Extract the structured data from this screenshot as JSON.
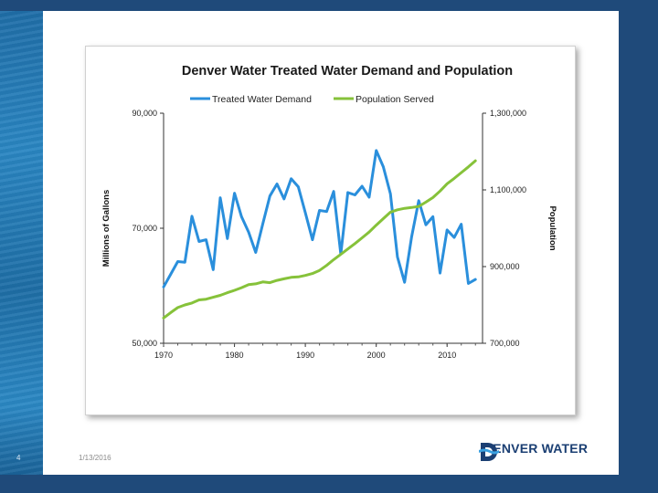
{
  "slide": {
    "page_number": "4",
    "date": "1/13/2016",
    "brand_name": "DENVER WATER"
  },
  "colors": {
    "demand": "#2a8fdc",
    "population": "#86c23a",
    "brand": "#1b3f73"
  },
  "chart_data": {
    "type": "line",
    "title": "Denver Water Treated Water Demand and Population",
    "ylabel": "Millions of Gallons",
    "y2label": "Population",
    "xlim": [
      1970,
      2015
    ],
    "ylim": [
      50000,
      90000
    ],
    "y2lim": [
      700000,
      1300000
    ],
    "x_ticks": [
      "1970",
      "1980",
      "1990",
      "2000",
      "2010"
    ],
    "y_ticks": [
      "50,000",
      "70,000",
      "90,000"
    ],
    "y2_ticks": [
      "700,000",
      "900,000",
      "1,100,000",
      "1,300,000"
    ],
    "legend": [
      "Treated Water Demand",
      "Population Served"
    ],
    "series": [
      {
        "name": "Treated Water Demand",
        "axis": "left",
        "x": [
          1970,
          1971,
          1972,
          1973,
          1974,
          1975,
          1976,
          1977,
          1978,
          1979,
          1980,
          1981,
          1982,
          1983,
          1984,
          1985,
          1986,
          1987,
          1988,
          1989,
          1990,
          1991,
          1992,
          1993,
          1994,
          1995,
          1996,
          1997,
          1998,
          1999,
          2000,
          2001,
          2002,
          2003,
          2004,
          2005,
          2006,
          2007,
          2008,
          2009,
          2010,
          2011,
          2012,
          2013,
          2014
        ],
        "values": [
          59800,
          62000,
          64200,
          64100,
          72100,
          67700,
          68000,
          62800,
          75300,
          68200,
          76100,
          72000,
          69300,
          65800,
          70800,
          75600,
          77700,
          75100,
          78600,
          77200,
          72700,
          68000,
          73100,
          72900,
          76400,
          65500,
          76200,
          75800,
          77300,
          75400,
          83500,
          80700,
          76000,
          65000,
          60600,
          68500,
          74800,
          70600,
          72000,
          62200,
          69700,
          68400,
          70700,
          60400,
          61100
        ]
      },
      {
        "name": "Population Served",
        "axis": "right",
        "x": [
          1970,
          1971,
          1972,
          1973,
          1974,
          1975,
          1976,
          1977,
          1978,
          1979,
          1980,
          1981,
          1982,
          1983,
          1984,
          1985,
          1986,
          1987,
          1988,
          1989,
          1990,
          1991,
          1992,
          1993,
          1994,
          1995,
          1996,
          1997,
          1998,
          1999,
          2000,
          2001,
          2002,
          2003,
          2004,
          2005,
          2006,
          2007,
          2008,
          2009,
          2010,
          2011,
          2012,
          2013,
          2014
        ],
        "values": [
          766000,
          780000,
          793000,
          800000,
          805000,
          813000,
          815000,
          820000,
          825000,
          832000,
          838000,
          845000,
          853000,
          855000,
          860000,
          858000,
          864000,
          868000,
          872000,
          873000,
          877000,
          882000,
          890000,
          903000,
          918000,
          932000,
          946000,
          960000,
          975000,
          990000,
          1008000,
          1025000,
          1042000,
          1048000,
          1052000,
          1054000,
          1057000,
          1068000,
          1080000,
          1097000,
          1116000,
          1130000,
          1145000,
          1160000,
          1176000
        ]
      }
    ]
  }
}
